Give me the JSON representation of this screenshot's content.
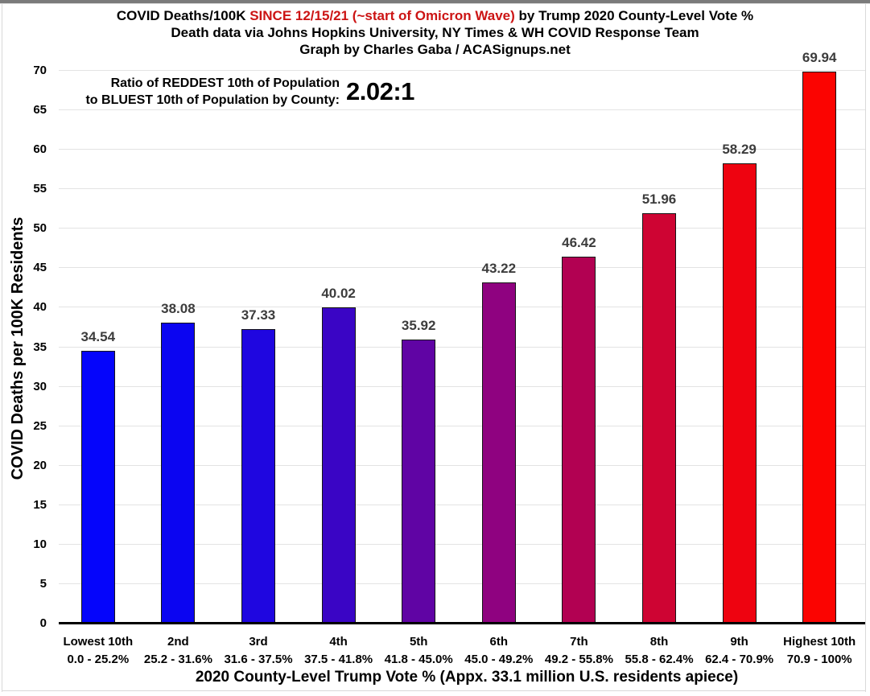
{
  "title": {
    "line1_prefix": "COVID Deaths/100K ",
    "line1_red": "SINCE 12/15/21 (~start of Omicron Wave)",
    "line1_suffix": " by Trump 2020 County-Level Vote %",
    "line2": "Death data via Johns Hopkins University, NY Times & WH COVID Response Team",
    "line3": "Graph by Charles Gaba / ACASignups.net",
    "red_color": "#cc1414"
  },
  "annotation": {
    "line1": "Ratio of REDDEST 10th of Population",
    "line2": "to BLUEST 10th of Population by County:",
    "ratio": "2.02:1"
  },
  "chart_data": {
    "type": "bar",
    "title": "COVID Deaths/100K SINCE 12/15/21 (~start of Omicron Wave) by Trump 2020 County-Level Vote %",
    "subtitle": "Death data via Johns Hopkins University, NY Times & WH COVID Response Team — Graph by Charles Gaba / ACASignups.net",
    "xlabel": "2020 County-Level Trump Vote % (Appx. 33.1 million U.S. residents apiece)",
    "ylabel": "COVID Deaths per 100K Residents",
    "ylim": [
      0,
      70
    ],
    "ytick_step": 5,
    "grid": true,
    "legend": "none",
    "categories": [
      "Lowest 10th",
      "2nd",
      "3rd",
      "4th",
      "5th",
      "6th",
      "7th",
      "8th",
      "9th",
      "Highest 10th"
    ],
    "category_ranges": [
      "0.0 - 25.2%",
      "25.2 - 31.6%",
      "31.6 - 37.5%",
      "37.5 - 41.8%",
      "41.8 - 45.0%",
      "45.0 - 49.2%",
      "49.2 - 55.8%",
      "55.8 - 62.4%",
      "62.4 - 70.9%",
      "70.9 - 100%"
    ],
    "values": [
      34.54,
      38.08,
      37.33,
      40.02,
      35.92,
      43.22,
      46.42,
      51.96,
      58.29,
      69.94
    ],
    "bar_colors": [
      "#0505fb",
      "#0b05f1",
      "#1f06e0",
      "#3a05c5",
      "#6004a4",
      "#8f0280",
      "#b20152",
      "#ce0433",
      "#ee0310",
      "#fb0401"
    ],
    "value_label_color": "#3c3c3c",
    "gridline_color": "#e3e3e3",
    "axis_line_color": "#000000"
  }
}
